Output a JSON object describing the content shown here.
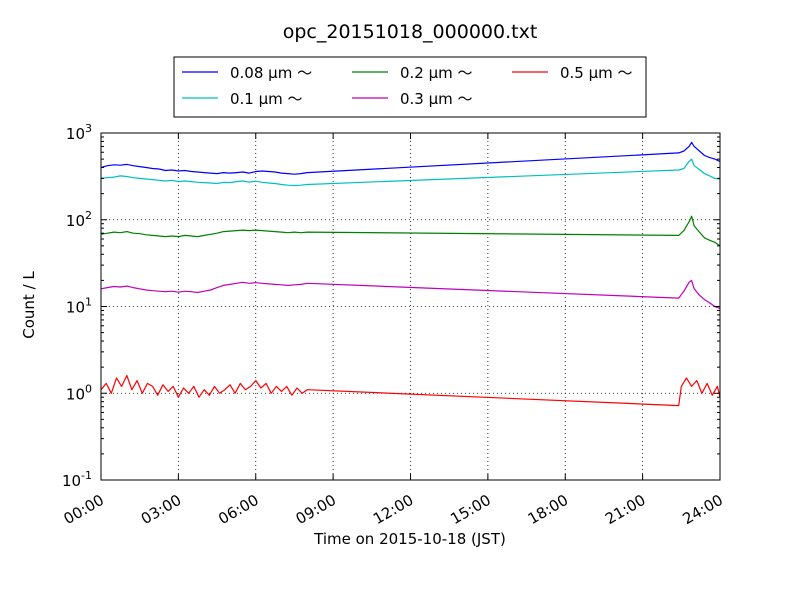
{
  "chart_data": {
    "type": "line",
    "title": "opc_20151018_000000.txt",
    "xlabel": "Time on 2015-10-18 (JST)",
    "ylabel": "Count / L",
    "x_unit": "hours",
    "xlim": [
      "00:00",
      "24:00"
    ],
    "ylim": [
      0.1,
      1000
    ],
    "y_scale": "log",
    "grid": true,
    "legend_position": "top",
    "x_ticks": [
      {
        "hour": 0,
        "label": "00:00"
      },
      {
        "hour": 3,
        "label": "03:00"
      },
      {
        "hour": 6,
        "label": "06:00"
      },
      {
        "hour": 9,
        "label": "09:00"
      },
      {
        "hour": 12,
        "label": "12:00"
      },
      {
        "hour": 15,
        "label": "15:00"
      },
      {
        "hour": 18,
        "label": "18:00"
      },
      {
        "hour": 21,
        "label": "21:00"
      },
      {
        "hour": 24,
        "label": "24:00"
      }
    ],
    "y_ticks": [
      {
        "value": 0.1,
        "base": "10",
        "exp": "-1"
      },
      {
        "value": 1,
        "base": "10",
        "exp": "0"
      },
      {
        "value": 10,
        "base": "10",
        "exp": "1"
      },
      {
        "value": 100,
        "base": "10",
        "exp": "2"
      },
      {
        "value": 1000,
        "base": "10",
        "exp": "3"
      }
    ],
    "series": [
      {
        "name": "0.08 μm ～",
        "color": "#0000ff",
        "points": [
          [
            0.0,
            400
          ],
          [
            0.25,
            420
          ],
          [
            0.5,
            430
          ],
          [
            0.75,
            425
          ],
          [
            1.0,
            435
          ],
          [
            1.25,
            420
          ],
          [
            1.5,
            410
          ],
          [
            1.75,
            400
          ],
          [
            2.0,
            390
          ],
          [
            2.25,
            385
          ],
          [
            2.5,
            370
          ],
          [
            2.75,
            375
          ],
          [
            3.0,
            365
          ],
          [
            3.25,
            370
          ],
          [
            3.5,
            360
          ],
          [
            3.75,
            355
          ],
          [
            4.0,
            350
          ],
          [
            4.25,
            345
          ],
          [
            4.5,
            340
          ],
          [
            4.75,
            350
          ],
          [
            5.0,
            345
          ],
          [
            5.25,
            350
          ],
          [
            5.5,
            355
          ],
          [
            5.75,
            345
          ],
          [
            6.0,
            360
          ],
          [
            6.25,
            365
          ],
          [
            6.5,
            360
          ],
          [
            6.75,
            355
          ],
          [
            7.0,
            345
          ],
          [
            7.25,
            340
          ],
          [
            7.5,
            335
          ],
          [
            7.75,
            340
          ],
          [
            8.0,
            350
          ],
          [
            22.4,
            590
          ],
          [
            22.6,
            620
          ],
          [
            22.8,
            700
          ],
          [
            22.9,
            780
          ],
          [
            23.0,
            700
          ],
          [
            23.2,
            620
          ],
          [
            23.4,
            550
          ],
          [
            23.6,
            520
          ],
          [
            23.8,
            500
          ],
          [
            24.0,
            470
          ]
        ]
      },
      {
        "name": "0.1 μm ～",
        "color": "#00bfbf",
        "points": [
          [
            0.0,
            300
          ],
          [
            0.25,
            305
          ],
          [
            0.5,
            310
          ],
          [
            0.75,
            320
          ],
          [
            1.0,
            315
          ],
          [
            1.25,
            305
          ],
          [
            1.5,
            300
          ],
          [
            1.75,
            295
          ],
          [
            2.0,
            290
          ],
          [
            2.25,
            285
          ],
          [
            2.5,
            280
          ],
          [
            2.75,
            285
          ],
          [
            3.0,
            275
          ],
          [
            3.25,
            280
          ],
          [
            3.5,
            275
          ],
          [
            3.75,
            270
          ],
          [
            4.0,
            268
          ],
          [
            4.25,
            265
          ],
          [
            4.5,
            262
          ],
          [
            4.75,
            270
          ],
          [
            5.0,
            268
          ],
          [
            5.25,
            275
          ],
          [
            5.5,
            280
          ],
          [
            5.75,
            272
          ],
          [
            6.0,
            278
          ],
          [
            6.25,
            270
          ],
          [
            6.5,
            265
          ],
          [
            6.75,
            262
          ],
          [
            7.0,
            255
          ],
          [
            7.25,
            250
          ],
          [
            7.5,
            248
          ],
          [
            7.75,
            250
          ],
          [
            8.0,
            255
          ],
          [
            22.4,
            375
          ],
          [
            22.6,
            390
          ],
          [
            22.8,
            470
          ],
          [
            22.9,
            500
          ],
          [
            23.0,
            420
          ],
          [
            23.2,
            380
          ],
          [
            23.4,
            340
          ],
          [
            23.6,
            320
          ],
          [
            23.8,
            300
          ],
          [
            24.0,
            295
          ]
        ]
      },
      {
        "name": "0.2 μm ～",
        "color": "#008000",
        "points": [
          [
            0.0,
            68
          ],
          [
            0.25,
            70
          ],
          [
            0.5,
            72
          ],
          [
            0.75,
            71
          ],
          [
            1.0,
            73
          ],
          [
            1.25,
            70
          ],
          [
            1.5,
            69
          ],
          [
            1.75,
            67
          ],
          [
            2.0,
            66
          ],
          [
            2.25,
            65
          ],
          [
            2.5,
            64
          ],
          [
            2.75,
            65
          ],
          [
            3.0,
            64
          ],
          [
            3.25,
            66
          ],
          [
            3.5,
            65
          ],
          [
            3.75,
            64
          ],
          [
            4.0,
            66
          ],
          [
            4.25,
            68
          ],
          [
            4.5,
            70
          ],
          [
            4.75,
            73
          ],
          [
            5.0,
            74
          ],
          [
            5.25,
            75
          ],
          [
            5.5,
            76
          ],
          [
            5.75,
            75
          ],
          [
            6.0,
            76
          ],
          [
            6.25,
            75
          ],
          [
            6.5,
            74
          ],
          [
            6.75,
            73
          ],
          [
            7.0,
            72
          ],
          [
            7.25,
            71
          ],
          [
            7.5,
            72
          ],
          [
            7.75,
            71
          ],
          [
            8.0,
            72
          ],
          [
            22.4,
            66
          ],
          [
            22.6,
            75
          ],
          [
            22.8,
            95
          ],
          [
            22.9,
            110
          ],
          [
            23.0,
            85
          ],
          [
            23.2,
            72
          ],
          [
            23.4,
            62
          ],
          [
            23.6,
            58
          ],
          [
            23.8,
            55
          ],
          [
            24.0,
            50
          ]
        ]
      },
      {
        "name": "0.3 μm ～",
        "color": "#bf00bf",
        "points": [
          [
            0.0,
            16
          ],
          [
            0.25,
            16.5
          ],
          [
            0.5,
            17
          ],
          [
            0.75,
            16.8
          ],
          [
            1.0,
            17.2
          ],
          [
            1.25,
            16.5
          ],
          [
            1.5,
            16
          ],
          [
            1.75,
            15.5
          ],
          [
            2.0,
            15.2
          ],
          [
            2.25,
            15
          ],
          [
            2.5,
            14.8
          ],
          [
            2.75,
            15
          ],
          [
            3.0,
            14.6
          ],
          [
            3.25,
            15
          ],
          [
            3.5,
            14.8
          ],
          [
            3.75,
            14.5
          ],
          [
            4.0,
            15
          ],
          [
            4.25,
            15.5
          ],
          [
            4.5,
            16.5
          ],
          [
            4.75,
            17.5
          ],
          [
            5.0,
            18
          ],
          [
            5.25,
            18.5
          ],
          [
            5.5,
            19
          ],
          [
            5.75,
            18.5
          ],
          [
            6.0,
            18.8
          ],
          [
            6.25,
            18.5
          ],
          [
            6.5,
            18.2
          ],
          [
            6.75,
            18
          ],
          [
            7.0,
            17.8
          ],
          [
            7.25,
            17.5
          ],
          [
            7.5,
            17.8
          ],
          [
            7.75,
            18
          ],
          [
            8.0,
            18.5
          ],
          [
            22.4,
            12.5
          ],
          [
            22.6,
            15
          ],
          [
            22.8,
            19
          ],
          [
            22.9,
            20
          ],
          [
            23.0,
            16
          ],
          [
            23.2,
            13.5
          ],
          [
            23.4,
            12
          ],
          [
            23.6,
            11
          ],
          [
            23.8,
            10
          ],
          [
            24.0,
            9.5
          ]
        ]
      },
      {
        "name": "0.5 μm ～",
        "color": "#ff0000",
        "points": [
          [
            0.0,
            1.1
          ],
          [
            0.2,
            1.3
          ],
          [
            0.4,
            1.0
          ],
          [
            0.6,
            1.5
          ],
          [
            0.8,
            1.2
          ],
          [
            1.0,
            1.6
          ],
          [
            1.2,
            1.1
          ],
          [
            1.4,
            1.4
          ],
          [
            1.6,
            1.0
          ],
          [
            1.8,
            1.3
          ],
          [
            2.0,
            1.2
          ],
          [
            2.2,
            0.95
          ],
          [
            2.4,
            1.25
          ],
          [
            2.6,
            1.05
          ],
          [
            2.8,
            1.2
          ],
          [
            3.0,
            0.9
          ],
          [
            3.2,
            1.15
          ],
          [
            3.4,
            1.0
          ],
          [
            3.6,
            1.2
          ],
          [
            3.8,
            0.9
          ],
          [
            4.0,
            1.1
          ],
          [
            4.2,
            0.95
          ],
          [
            4.4,
            1.2
          ],
          [
            4.6,
            1.0
          ],
          [
            4.8,
            1.1
          ],
          [
            5.0,
            1.25
          ],
          [
            5.2,
            1.0
          ],
          [
            5.4,
            1.3
          ],
          [
            5.6,
            1.1
          ],
          [
            5.8,
            1.2
          ],
          [
            6.0,
            1.4
          ],
          [
            6.2,
            1.15
          ],
          [
            6.4,
            1.3
          ],
          [
            6.6,
            1.0
          ],
          [
            6.8,
            1.2
          ],
          [
            7.0,
            1.05
          ],
          [
            7.2,
            1.2
          ],
          [
            7.4,
            0.95
          ],
          [
            7.6,
            1.15
          ],
          [
            7.8,
            1.0
          ],
          [
            8.0,
            1.1
          ],
          [
            22.4,
            0.72
          ],
          [
            22.5,
            1.2
          ],
          [
            22.7,
            1.5
          ],
          [
            22.9,
            1.2
          ],
          [
            23.1,
            1.4
          ],
          [
            23.3,
            1.0
          ],
          [
            23.5,
            1.3
          ],
          [
            23.7,
            0.95
          ],
          [
            23.9,
            1.2
          ],
          [
            24.0,
            0.9
          ]
        ]
      }
    ]
  }
}
